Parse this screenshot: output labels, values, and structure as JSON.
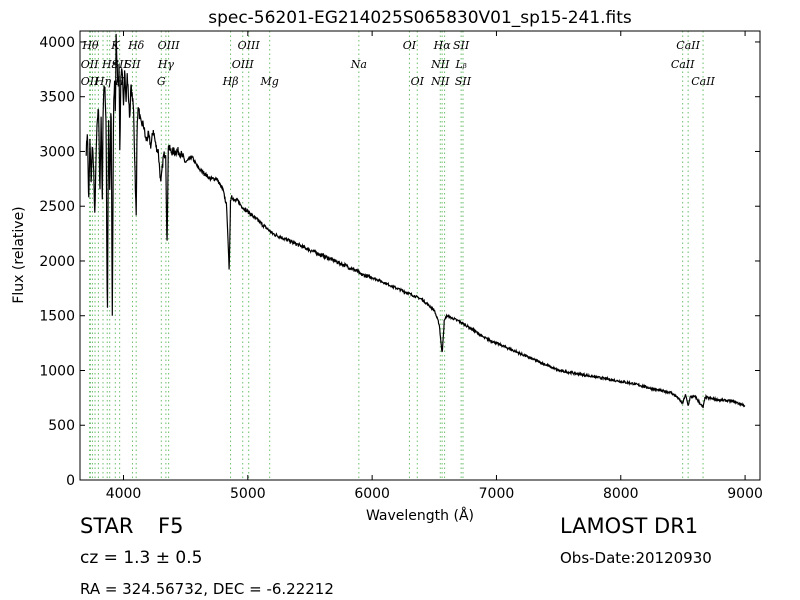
{
  "chart_data": {
    "type": "line",
    "title": "spec-56201-EG214025S065830V01_sp15-241.fits",
    "xlabel": "Wavelength (Å)",
    "ylabel": "Flux (relative)",
    "xlim": [
      3650,
      9120
    ],
    "ylim": [
      0,
      4100
    ],
    "xticks": [
      4000,
      5000,
      6000,
      7000,
      8000,
      9000
    ],
    "yticks": [
      0,
      500,
      1000,
      1500,
      2000,
      2500,
      3000,
      3500,
      4000
    ],
    "grid": false,
    "line_color": "#000000",
    "marker_color": "#6bbf6b",
    "series": [
      {
        "x": [
          3700,
          3710,
          3720,
          3730,
          3740,
          3750,
          3760,
          3770,
          3780,
          3790,
          3800,
          3810,
          3820,
          3830,
          3835,
          3840,
          3850,
          3860,
          3870,
          3880,
          3890,
          3900,
          3910,
          3920,
          3930,
          3935,
          3940,
          3950,
          3960,
          3965,
          3970,
          3980,
          3990,
          4000,
          4010,
          4020,
          4030,
          4040,
          4050,
          4060,
          4080,
          4102,
          4110,
          4120,
          4140,
          4160,
          4180,
          4200,
          4220,
          4240,
          4260,
          4280,
          4300,
          4320,
          4340,
          4350,
          4360,
          4380,
          4400,
          4450,
          4500,
          4550,
          4600,
          4650,
          4700,
          4750,
          4800,
          4830,
          4850,
          4861,
          4870,
          4890,
          4920,
          4950,
          5000,
          5050,
          5100,
          5150,
          5200,
          5300,
          5400,
          5500,
          5600,
          5700,
          5800,
          5890,
          5900,
          6000,
          6100,
          6200,
          6300,
          6400,
          6500,
          6540,
          6563,
          6580,
          6600,
          6700,
          6800,
          6900,
          7000,
          7100,
          7200,
          7300,
          7400,
          7500,
          7600,
          7700,
          7800,
          7900,
          8000,
          8100,
          8200,
          8300,
          8400,
          8450,
          8498,
          8520,
          8542,
          8560,
          8600,
          8662,
          8680,
          8700,
          8800,
          8900,
          8950,
          9000
        ],
        "y": [
          3000,
          3200,
          2500,
          3100,
          2700,
          3100,
          2800,
          2400,
          3000,
          3300,
          3400,
          2600,
          3300,
          2500,
          3300,
          3550,
          3600,
          3200,
          1400,
          3300,
          2600,
          3500,
          1500,
          3400,
          3700,
          3300,
          4050,
          3750,
          3600,
          3800,
          3000,
          3750,
          3700,
          3400,
          3800,
          3450,
          3700,
          3500,
          3300,
          3600,
          3400,
          2400,
          3300,
          3400,
          3250,
          3250,
          3100,
          3150,
          3050,
          3200,
          3050,
          3000,
          2700,
          2950,
          3000,
          2050,
          3050,
          3000,
          3000,
          3000,
          2900,
          2950,
          2850,
          2800,
          2750,
          2750,
          2650,
          2500,
          1900,
          2550,
          2600,
          2550,
          2550,
          2500,
          2450,
          2400,
          2350,
          2300,
          2250,
          2200,
          2150,
          2100,
          2050,
          2000,
          1950,
          1900,
          1880,
          1850,
          1800,
          1750,
          1700,
          1650,
          1550,
          1420,
          1150,
          1450,
          1500,
          1450,
          1380,
          1300,
          1250,
          1200,
          1150,
          1100,
          1050,
          1000,
          980,
          960,
          940,
          920,
          900,
          880,
          850,
          820,
          800,
          760,
          700,
          780,
          680,
          760,
          760,
          660,
          760,
          750,
          730,
          720,
          700,
          680
        ]
      }
    ],
    "lines": [
      {
        "x": 3727,
        "rows": [
          1,
          2
        ],
        "label": "OII",
        "label_alt": "OII"
      },
      {
        "x": 3734,
        "rows": [
          0
        ],
        "label": "Hθ"
      },
      {
        "x": 3750,
        "rows": [],
        "label": ""
      },
      {
        "x": 3771,
        "rows": [],
        "label": ""
      },
      {
        "x": 3798,
        "rows": [],
        "label": ""
      },
      {
        "x": 3835,
        "rows": [
          2
        ],
        "label": "Hη"
      },
      {
        "x": 3869,
        "rows": [],
        "label": ""
      },
      {
        "x": 3889,
        "rows": [
          1
        ],
        "label": "Hε"
      },
      {
        "x": 3934,
        "rows": [
          0
        ],
        "label": "K"
      },
      {
        "x": 3969,
        "rows": [
          1,
          2
        ],
        "label": "SII",
        "label_alt": "H"
      },
      {
        "x": 4072,
        "rows": [
          1
        ],
        "label": "SII"
      },
      {
        "x": 4102,
        "rows": [
          0
        ],
        "label": "Hδ"
      },
      {
        "x": 4304,
        "rows": [
          2
        ],
        "label": "G"
      },
      {
        "x": 4341,
        "rows": [
          1
        ],
        "label": "Hγ"
      },
      {
        "x": 4363,
        "rows": [
          0
        ],
        "label": "OIII"
      },
      {
        "x": 4861,
        "rows": [
          2
        ],
        "label": "Hβ"
      },
      {
        "x": 4959,
        "rows": [
          1
        ],
        "label": "OIII"
      },
      {
        "x": 5007,
        "rows": [
          0
        ],
        "label": "OIII"
      },
      {
        "x": 5176,
        "rows": [
          2
        ],
        "label": "Mg"
      },
      {
        "x": 5893,
        "rows": [
          1
        ],
        "label": "Na"
      },
      {
        "x": 6300,
        "rows": [
          0
        ],
        "label": "OI"
      },
      {
        "x": 6363,
        "rows": [
          2
        ],
        "label": "OI"
      },
      {
        "x": 6548,
        "rows": [
          1,
          2
        ],
        "label": "NII",
        "label_alt": "NII"
      },
      {
        "x": 6563,
        "rows": [
          0
        ],
        "label": "Hα"
      },
      {
        "x": 6583,
        "rows": [],
        "label": ""
      },
      {
        "x": 6716,
        "rows": [
          0,
          1
        ],
        "label": "SII",
        "label_alt": "Lᵦ"
      },
      {
        "x": 6731,
        "rows": [
          2
        ],
        "label": "SII"
      },
      {
        "x": 8498,
        "rows": [
          1
        ],
        "label": "CaII"
      },
      {
        "x": 8542,
        "rows": [
          0
        ],
        "label": "CaII"
      },
      {
        "x": 8662,
        "rows": [
          2
        ],
        "label": "CaII"
      }
    ]
  },
  "info": {
    "object_class": "STAR",
    "subclass": "F5",
    "survey": "LAMOST DR1",
    "cz": "cz = 1.3 ± 0.5",
    "obs_date": "Obs-Date:20120930",
    "radec": "RA = 324.56732, DEC = -6.22212"
  }
}
